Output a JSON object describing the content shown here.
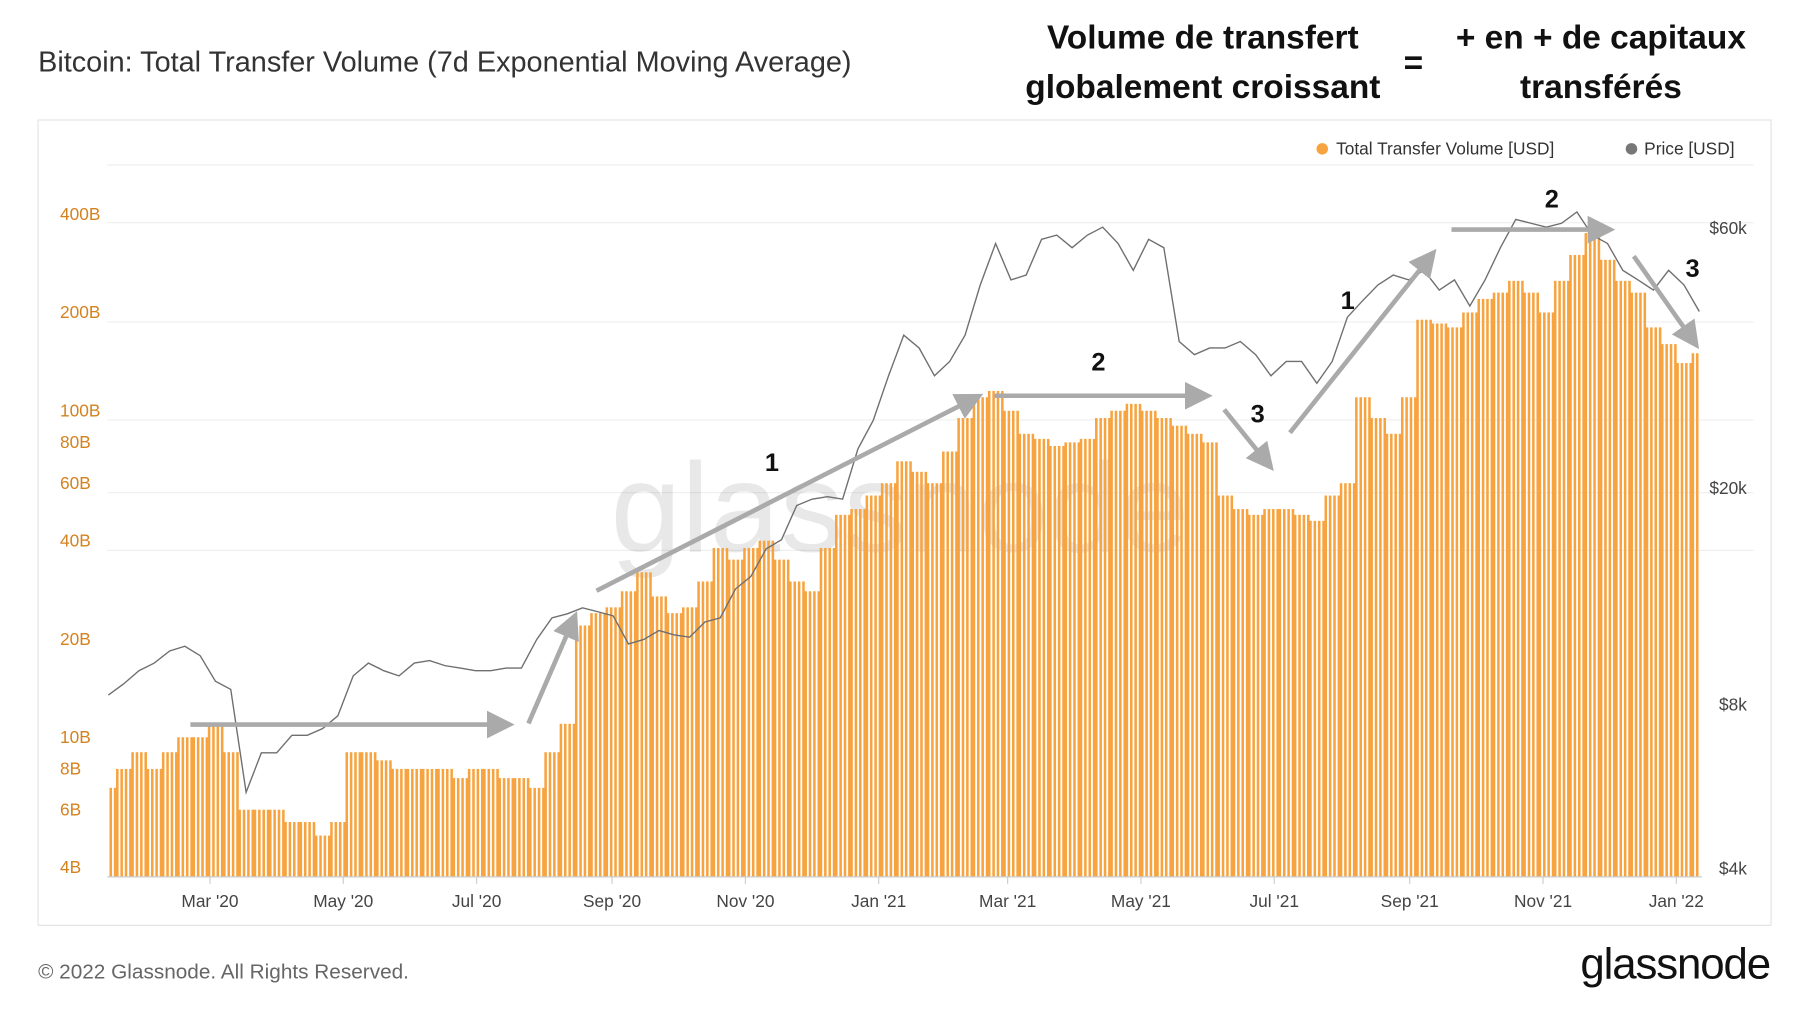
{
  "header": {
    "title": "Bitcoin: Total Transfer Volume (7d Exponential Moving Average)",
    "annotation_left": [
      "Volume de transfert",
      "globalement croissant"
    ],
    "annotation_equals": "=",
    "annotation_right": [
      "+ en + de capitaux",
      "transférés"
    ]
  },
  "footer": {
    "copyright": "© 2022 Glassnode. All Rights Reserved.",
    "logo": "glassnode"
  },
  "watermark": "glassnode",
  "chart_data": {
    "type": "bar+line",
    "title": "Bitcoin: Total Transfer Volume (7d Exponential Moving Average)",
    "legend": {
      "placement": "top-right",
      "items": [
        {
          "name": "Total Transfer Volume [USD]",
          "color": "#f7a440"
        },
        {
          "name": "Price [USD]",
          "color": "#777777"
        }
      ]
    },
    "first_week": "2020-01-11",
    "interval_days": 7,
    "x_range": [
      "2020-01-13",
      "2022-01-11"
    ],
    "x_ticks": [
      {
        "label": "Mar '20",
        "date": "2020-03-01"
      },
      {
        "label": "May '20",
        "date": "2020-05-01"
      },
      {
        "label": "Jul '20",
        "date": "2020-07-01"
      },
      {
        "label": "Sep '20",
        "date": "2020-09-01"
      },
      {
        "label": "Nov '20",
        "date": "2020-11-01"
      },
      {
        "label": "Jan '21",
        "date": "2021-01-01"
      },
      {
        "label": "Mar '21",
        "date": "2021-03-01"
      },
      {
        "label": "May '21",
        "date": "2021-05-01"
      },
      {
        "label": "Jul '21",
        "date": "2021-07-01"
      },
      {
        "label": "Sep '21",
        "date": "2021-09-01"
      },
      {
        "label": "Nov '21",
        "date": "2021-11-01"
      },
      {
        "label": "Jan '22",
        "date": "2022-01-01"
      }
    ],
    "y_left": {
      "scale": "log",
      "unit": "B",
      "range": [
        4,
        560
      ],
      "ticks": [
        {
          "label": "4B",
          "v": 4
        },
        {
          "label": "6B",
          "v": 6
        },
        {
          "label": "8B",
          "v": 8
        },
        {
          "label": "10B",
          "v": 10
        },
        {
          "label": "20B",
          "v": 20
        },
        {
          "label": "40B",
          "v": 40
        },
        {
          "label": "60B",
          "v": 60
        },
        {
          "label": "80B",
          "v": 80
        },
        {
          "label": "100B",
          "v": 100
        },
        {
          "label": "200B",
          "v": 200
        },
        {
          "label": "400B",
          "v": 400
        }
      ]
    },
    "y_right": {
      "scale": "log",
      "unit": "k USD",
      "ticks": [
        {
          "label": "$4k",
          "v": 4
        },
        {
          "label": "$8k",
          "v": 8
        },
        {
          "label": "$20k",
          "v": 20
        },
        {
          "label": "$60k",
          "v": 60
        }
      ]
    },
    "grid": true,
    "series": [
      {
        "name": "Total Transfer Volume [USD]",
        "type": "bar",
        "axis": "left",
        "color": "#f7a440",
        "values": [
          7,
          8,
          9,
          8,
          9,
          10,
          10,
          11,
          9,
          6,
          6,
          6,
          5.5,
          5.5,
          5,
          5.5,
          9,
          9,
          8.5,
          8,
          8,
          8,
          8,
          7.5,
          8,
          8,
          7.5,
          7.5,
          7,
          9,
          11,
          22,
          24,
          25,
          28,
          32,
          27,
          24,
          25,
          30,
          38,
          35,
          38,
          40,
          35,
          30,
          28,
          38,
          48,
          50,
          55,
          60,
          70,
          65,
          60,
          75,
          95,
          110,
          115,
          100,
          85,
          82,
          78,
          80,
          82,
          95,
          100,
          105,
          100,
          95,
          90,
          85,
          80,
          55,
          50,
          48,
          50,
          50,
          48,
          46,
          55,
          60,
          110,
          95,
          85,
          110,
          190,
          185,
          180,
          200,
          220,
          230,
          250,
          230,
          200,
          250,
          300,
          350,
          290,
          250,
          230,
          180,
          160,
          140,
          150
        ]
      },
      {
        "name": "Price [USD]",
        "type": "line",
        "axis": "right",
        "color": "#777777",
        "values": [
          8.3,
          8.7,
          9.2,
          9.5,
          10,
          10.2,
          9.8,
          8.8,
          8.5,
          5.5,
          6.5,
          6.5,
          7,
          7,
          7.2,
          7.6,
          9,
          9.5,
          9.2,
          9,
          9.5,
          9.6,
          9.4,
          9.3,
          9.2,
          9.2,
          9.3,
          9.3,
          10.5,
          11.5,
          11.7,
          12,
          11.8,
          11.6,
          10.3,
          10.5,
          10.9,
          10.7,
          10.6,
          11.3,
          11.5,
          13,
          13.7,
          15.4,
          16,
          18.5,
          19,
          19.2,
          19,
          23.5,
          26.5,
          32,
          38,
          36,
          32,
          34,
          38,
          47,
          56,
          48,
          49,
          57,
          58,
          55,
          58,
          60,
          56,
          50,
          57,
          55,
          37,
          35,
          36,
          36,
          37,
          35,
          32,
          34,
          34,
          31,
          34,
          41,
          44,
          47,
          49,
          48,
          50,
          46,
          48,
          43,
          48,
          55,
          62,
          61,
          60,
          61,
          64,
          58,
          56,
          50,
          48,
          46,
          50,
          47,
          42
        ]
      }
    ],
    "annotations": [
      {
        "label": "",
        "from": [
          "2020-02-26",
          12
        ],
        "to": [
          "2020-07-18",
          12
        ]
      },
      {
        "label": "",
        "from": [
          "2020-07-29",
          12
        ],
        "to": [
          "2020-08-18",
          24
        ]
      },
      {
        "label": "1",
        "from": [
          "2020-08-29",
          29
        ],
        "to": [
          "2021-02-20",
          115
        ]
      },
      {
        "label": "2",
        "from": [
          "2021-02-28",
          115
        ],
        "to": [
          "2021-06-botm",
          115
        ]
      },
      {
        "label": "3",
        "from": [
          "2021-06-14",
          105
        ],
        "to": [
          "2021-07-04",
          70
        ]
      },
      {
        "label": "1",
        "from": [
          "2021-07-14",
          85
        ],
        "to": [
          "2021-09-17",
          350
        ]
      },
      {
        "label": "2",
        "from": [
          "2021-09-26",
          420
        ],
        "to": [
          "2021-12-06",
          420
        ]
      },
      {
        "label": "3",
        "from": [
          "2021-12-18",
          350
        ],
        "to": [
          "2022-01-13",
          195
        ]
      }
    ]
  }
}
